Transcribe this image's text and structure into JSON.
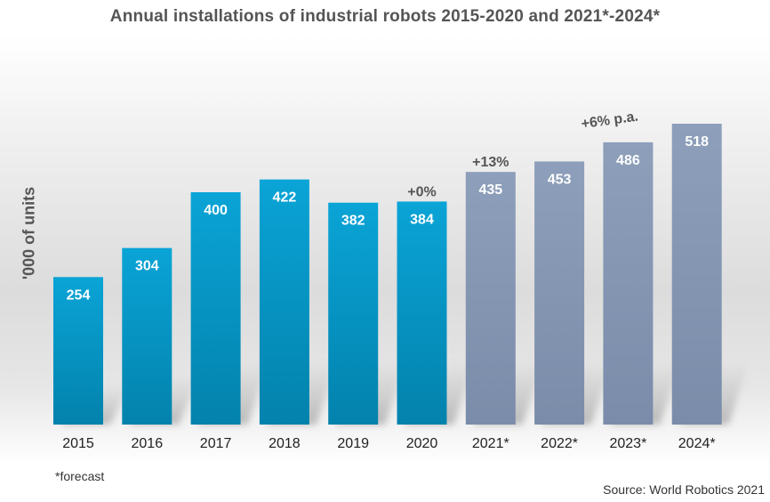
{
  "chart_data": {
    "type": "bar",
    "title": "Annual installations of industrial robots 2015-2020 and 2021*-2024*",
    "ylabel": "'000 of units",
    "xlabel": "",
    "categories": [
      "2015",
      "2016",
      "2017",
      "2018",
      "2019",
      "2020",
      "2021*",
      "2022*",
      "2023*",
      "2024*"
    ],
    "values": [
      254,
      304,
      400,
      422,
      382,
      384,
      435,
      453,
      486,
      518
    ],
    "data_labels": [
      "254",
      "304",
      "400",
      "422",
      "382",
      "384",
      "435",
      "453",
      "486",
      "518"
    ],
    "series_kind": [
      "actual",
      "actual",
      "actual",
      "actual",
      "actual",
      "actual",
      "forecast",
      "forecast",
      "forecast",
      "forecast"
    ],
    "ylim": [
      0,
      550
    ],
    "grid": false,
    "colors": {
      "actual_top": "#0aa4d6",
      "actual_bottom": "#0382ac",
      "forecast_top": "#8d9fba",
      "forecast_bottom": "#7a8ca9"
    },
    "annotations": [
      {
        "text": "+0%",
        "category": "2020"
      },
      {
        "text": "+13%",
        "category": "2021*"
      },
      {
        "text": "+6% p.a.",
        "category": "2023*"
      }
    ]
  },
  "footnote": "*forecast",
  "source": "Source: World Robotics 2021"
}
